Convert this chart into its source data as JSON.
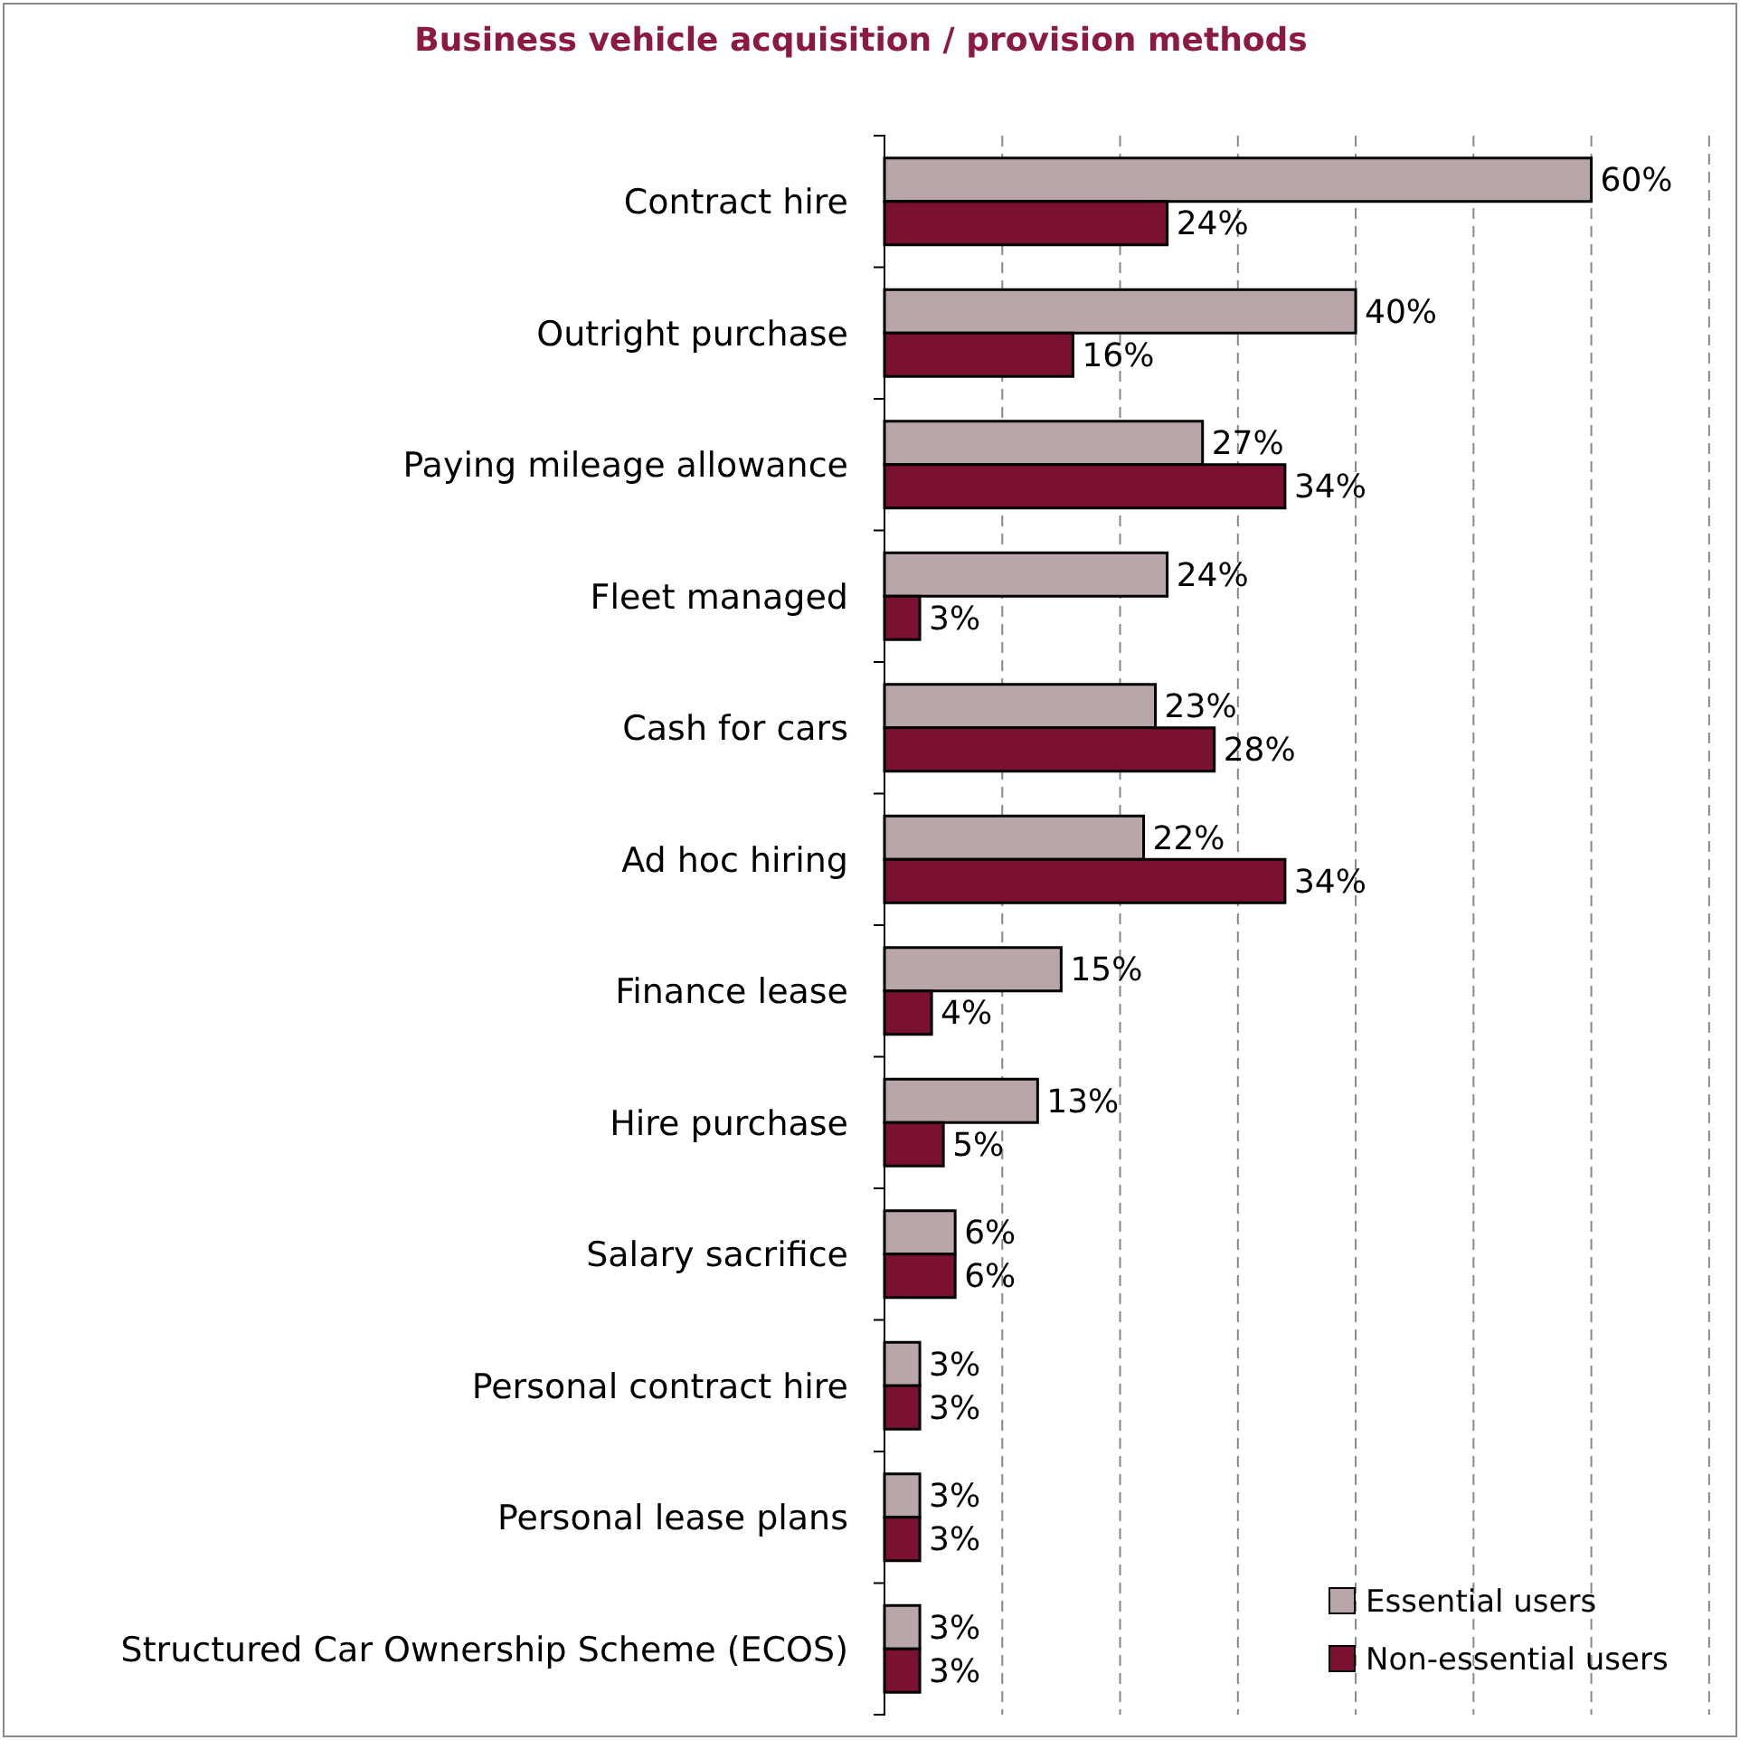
{
  "chart_data": {
    "type": "bar",
    "orientation": "horizontal",
    "title": "Business vehicle acquisition / provision methods",
    "categories": [
      "Contract hire",
      "Outright purchase",
      "Paying mileage allowance",
      "Fleet managed",
      "Cash for cars",
      "Ad hoc hiring",
      "Finance lease",
      "Hire purchase",
      "Salary sacrifice",
      "Personal contract hire",
      "Personal lease plans",
      "Structured Car Ownership Scheme (ECOS)"
    ],
    "series": [
      {
        "name": "Essential users",
        "color": "#b8a6a9",
        "values": [
          60,
          40,
          27,
          24,
          23,
          22,
          15,
          13,
          6,
          3,
          3,
          3
        ],
        "value_labels": [
          "60%",
          "40%",
          "27%",
          "24%",
          "23%",
          "22%",
          "15%",
          "13%",
          "6%",
          "3%",
          "3%",
          "3%"
        ]
      },
      {
        "name": "Non-essential users",
        "color": "#7b1131",
        "values": [
          24,
          16,
          34,
          3,
          28,
          34,
          4,
          5,
          6,
          3,
          3,
          3
        ],
        "value_labels": [
          "24%",
          "16%",
          "34%",
          "3%",
          "28%",
          "34%",
          "4%",
          "5%",
          "6%",
          "3%",
          "3%",
          "3%"
        ]
      }
    ],
    "grid": "x",
    "legend": "bottom right"
  }
}
